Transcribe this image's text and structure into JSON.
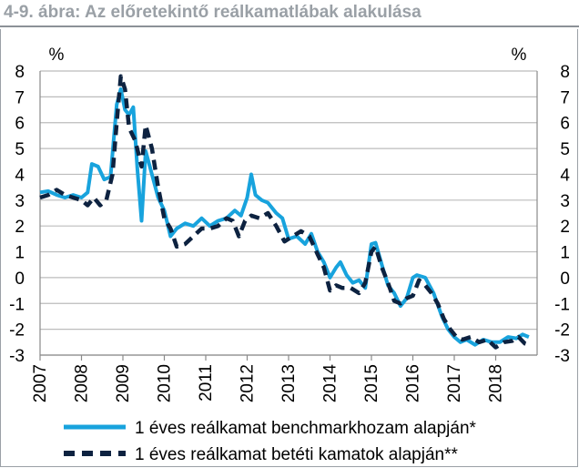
{
  "title": "4-9. ábra: Az előretekintő reálkamatlábak alakulása",
  "chart_data": {
    "type": "line",
    "y_unit_left": "%",
    "y_unit_right": "%",
    "ylim": [
      -3,
      8
    ],
    "yticks": [
      -3,
      -2,
      -1,
      0,
      1,
      2,
      3,
      4,
      5,
      6,
      7,
      8
    ],
    "xlim": [
      2007,
      2019
    ],
    "xticks": [
      "2007",
      "2008",
      "2009",
      "2010",
      "2011",
      "2012",
      "2013",
      "2014",
      "2015",
      "2016",
      "2017",
      "2018"
    ],
    "grid": true,
    "legend_position": "bottom",
    "series": [
      {
        "name": "1 éves reálkamat benchmarkhozam alapján*",
        "color": "#18a3dd",
        "style": "solid",
        "points": [
          [
            2007.0,
            3.3
          ],
          [
            2007.2,
            3.35
          ],
          [
            2007.4,
            3.2
          ],
          [
            2007.6,
            3.1
          ],
          [
            2007.8,
            3.2
          ],
          [
            2008.0,
            3.1
          ],
          [
            2008.15,
            3.3
          ],
          [
            2008.25,
            4.4
          ],
          [
            2008.4,
            4.3
          ],
          [
            2008.55,
            3.8
          ],
          [
            2008.7,
            3.9
          ],
          [
            2008.85,
            6.7
          ],
          [
            2008.95,
            7.3
          ],
          [
            2009.05,
            6.5
          ],
          [
            2009.15,
            6.3
          ],
          [
            2009.25,
            6.6
          ],
          [
            2009.35,
            4.2
          ],
          [
            2009.45,
            2.2
          ],
          [
            2009.55,
            4.9
          ],
          [
            2009.7,
            4.0
          ],
          [
            2009.85,
            3.1
          ],
          [
            2010.0,
            2.6
          ],
          [
            2010.15,
            1.6
          ],
          [
            2010.3,
            1.9
          ],
          [
            2010.5,
            2.1
          ],
          [
            2010.7,
            2.0
          ],
          [
            2010.9,
            2.3
          ],
          [
            2011.1,
            2.0
          ],
          [
            2011.3,
            2.2
          ],
          [
            2011.5,
            2.3
          ],
          [
            2011.7,
            2.6
          ],
          [
            2011.85,
            2.4
          ],
          [
            2012.0,
            3.1
          ],
          [
            2012.1,
            4.0
          ],
          [
            2012.2,
            3.2
          ],
          [
            2012.35,
            3.0
          ],
          [
            2012.5,
            2.9
          ],
          [
            2012.7,
            2.5
          ],
          [
            2012.85,
            2.3
          ],
          [
            2013.0,
            1.5
          ],
          [
            2013.2,
            1.6
          ],
          [
            2013.4,
            1.3
          ],
          [
            2013.55,
            1.7
          ],
          [
            2013.7,
            1.0
          ],
          [
            2013.85,
            0.6
          ],
          [
            2014.0,
            0.0
          ],
          [
            2014.15,
            0.4
          ],
          [
            2014.25,
            0.6
          ],
          [
            2014.4,
            0.1
          ],
          [
            2014.55,
            -0.2
          ],
          [
            2014.7,
            -0.1
          ],
          [
            2014.85,
            -0.4
          ],
          [
            2015.0,
            1.3
          ],
          [
            2015.1,
            1.35
          ],
          [
            2015.25,
            0.5
          ],
          [
            2015.4,
            -0.3
          ],
          [
            2015.55,
            -0.6
          ],
          [
            2015.7,
            -1.1
          ],
          [
            2015.85,
            -0.8
          ],
          [
            2016.0,
            0.0
          ],
          [
            2016.1,
            0.1
          ],
          [
            2016.3,
            0.0
          ],
          [
            2016.5,
            -0.6
          ],
          [
            2016.7,
            -1.5
          ],
          [
            2016.85,
            -2.0
          ],
          [
            2017.0,
            -2.3
          ],
          [
            2017.15,
            -2.5
          ],
          [
            2017.3,
            -2.4
          ],
          [
            2017.5,
            -2.6
          ],
          [
            2017.7,
            -2.4
          ],
          [
            2017.9,
            -2.5
          ],
          [
            2018.1,
            -2.5
          ],
          [
            2018.3,
            -2.3
          ],
          [
            2018.5,
            -2.35
          ],
          [
            2018.65,
            -2.2
          ],
          [
            2018.8,
            -2.3
          ]
        ]
      },
      {
        "name": "1 éves reálkamat betéti kamatok alapján**",
        "color": "#0d2240",
        "style": "dashed",
        "points": [
          [
            2007.0,
            3.1
          ],
          [
            2007.2,
            3.2
          ],
          [
            2007.4,
            3.4
          ],
          [
            2007.6,
            3.2
          ],
          [
            2007.8,
            3.1
          ],
          [
            2008.0,
            3.0
          ],
          [
            2008.15,
            2.8
          ],
          [
            2008.3,
            3.1
          ],
          [
            2008.45,
            2.8
          ],
          [
            2008.6,
            3.0
          ],
          [
            2008.75,
            4.0
          ],
          [
            2008.85,
            6.0
          ],
          [
            2008.95,
            7.8
          ],
          [
            2009.05,
            7.3
          ],
          [
            2009.15,
            5.8
          ],
          [
            2009.3,
            5.3
          ],
          [
            2009.45,
            4.3
          ],
          [
            2009.55,
            5.9
          ],
          [
            2009.7,
            5.0
          ],
          [
            2009.85,
            3.5
          ],
          [
            2010.0,
            2.3
          ],
          [
            2010.15,
            1.9
          ],
          [
            2010.3,
            1.2
          ],
          [
            2010.5,
            1.3
          ],
          [
            2010.7,
            1.6
          ],
          [
            2010.9,
            1.9
          ],
          [
            2011.1,
            1.9
          ],
          [
            2011.3,
            2.0
          ],
          [
            2011.5,
            2.3
          ],
          [
            2011.65,
            2.2
          ],
          [
            2011.8,
            1.6
          ],
          [
            2011.95,
            2.2
          ],
          [
            2012.1,
            2.4
          ],
          [
            2012.3,
            2.3
          ],
          [
            2012.5,
            2.5
          ],
          [
            2012.7,
            2.0
          ],
          [
            2012.9,
            1.4
          ],
          [
            2013.1,
            1.6
          ],
          [
            2013.3,
            1.8
          ],
          [
            2013.5,
            1.6
          ],
          [
            2013.7,
            0.9
          ],
          [
            2013.85,
            0.4
          ],
          [
            2014.0,
            -0.5
          ],
          [
            2014.15,
            -0.3
          ],
          [
            2014.3,
            -0.4
          ],
          [
            2014.5,
            -0.4
          ],
          [
            2014.7,
            -0.6
          ],
          [
            2014.85,
            -0.2
          ],
          [
            2015.0,
            1.0
          ],
          [
            2015.1,
            1.2
          ],
          [
            2015.25,
            0.4
          ],
          [
            2015.4,
            -0.2
          ],
          [
            2015.55,
            -0.9
          ],
          [
            2015.7,
            -1.0
          ],
          [
            2015.85,
            -0.8
          ],
          [
            2016.0,
            -0.7
          ],
          [
            2016.15,
            -0.1
          ],
          [
            2016.3,
            -0.3
          ],
          [
            2016.45,
            -0.6
          ],
          [
            2016.6,
            -1.0
          ],
          [
            2016.75,
            -1.6
          ],
          [
            2016.9,
            -2.0
          ],
          [
            2017.05,
            -2.3
          ],
          [
            2017.2,
            -2.4
          ],
          [
            2017.4,
            -2.3
          ],
          [
            2017.6,
            -2.5
          ],
          [
            2017.8,
            -2.4
          ],
          [
            2018.0,
            -2.7
          ],
          [
            2018.2,
            -2.5
          ],
          [
            2018.4,
            -2.45
          ],
          [
            2018.55,
            -2.3
          ],
          [
            2018.7,
            -2.55
          ],
          [
            2018.8,
            -2.6
          ]
        ]
      }
    ]
  }
}
